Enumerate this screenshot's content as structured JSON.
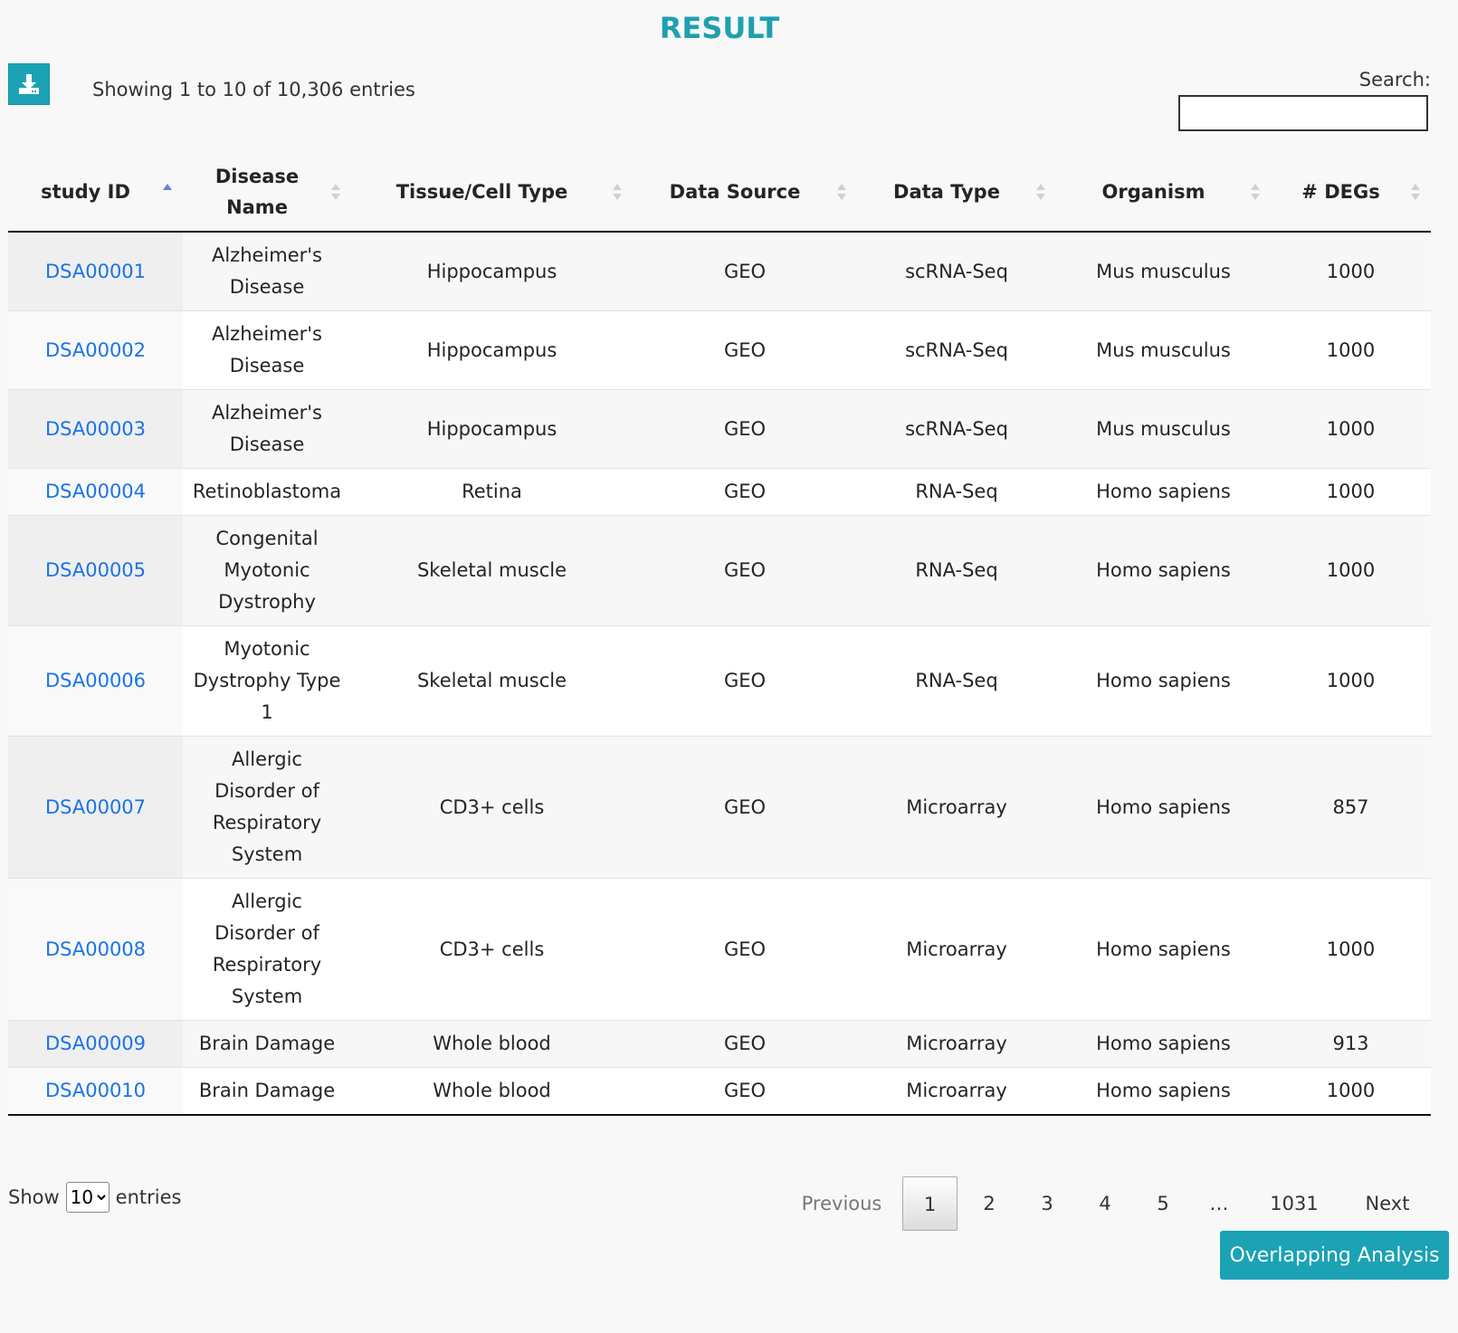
{
  "page": {
    "title": "RESULT"
  },
  "toolbar": {
    "download_icon": "download-icon",
    "info": "Showing 1 to 10 of 10,306 entries"
  },
  "search": {
    "label": "Search:",
    "value": ""
  },
  "table": {
    "columns": [
      "study ID",
      "Disease Name",
      "Tissue/Cell Type",
      "Data Source",
      "Data Type",
      "Organism",
      "# DEGs"
    ],
    "sorted_column": "study ID",
    "sort_direction": "ascending",
    "rows": [
      [
        "DSA00001",
        "Alzheimer's Disease",
        "Hippocampus",
        "GEO",
        "scRNA-Seq",
        "Mus musculus",
        "1000"
      ],
      [
        "DSA00002",
        "Alzheimer's Disease",
        "Hippocampus",
        "GEO",
        "scRNA-Seq",
        "Mus musculus",
        "1000"
      ],
      [
        "DSA00003",
        "Alzheimer's Disease",
        "Hippocampus",
        "GEO",
        "scRNA-Seq",
        "Mus musculus",
        "1000"
      ],
      [
        "DSA00004",
        "Retinoblastoma",
        "Retina",
        "GEO",
        "RNA-Seq",
        "Homo sapiens",
        "1000"
      ],
      [
        "DSA00005",
        "Congenital Myotonic Dystrophy",
        "Skeletal muscle",
        "GEO",
        "RNA-Seq",
        "Homo sapiens",
        "1000"
      ],
      [
        "DSA00006",
        "Myotonic Dystrophy Type 1",
        "Skeletal muscle",
        "GEO",
        "RNA-Seq",
        "Homo sapiens",
        "1000"
      ],
      [
        "DSA00007",
        "Allergic Disorder of Respiratory System",
        "CD3+ cells",
        "GEO",
        "Microarray",
        "Homo sapiens",
        "857"
      ],
      [
        "DSA00008",
        "Allergic Disorder of Respiratory System",
        "CD3+ cells",
        "GEO",
        "Microarray",
        "Homo sapiens",
        "1000"
      ],
      [
        "DSA00009",
        "Brain Damage",
        "Whole blood",
        "GEO",
        "Microarray",
        "Homo sapiens",
        "913"
      ],
      [
        "DSA00010",
        "Brain Damage",
        "Whole blood",
        "GEO",
        "Microarray",
        "Homo sapiens",
        "1000"
      ]
    ]
  },
  "length": {
    "show_label": "Show",
    "selected": "10",
    "entries_label": "entries"
  },
  "pagination": {
    "previous": "Previous",
    "pages": [
      "1",
      "2",
      "3",
      "4",
      "5",
      "…",
      "1031"
    ],
    "current": "1",
    "next": "Next"
  },
  "actions": {
    "overlapping_analysis": "Overlapping Analysis"
  },
  "colors": {
    "accent": "#1ba2b5",
    "title": "#1fa0b0",
    "link": "#1a73e8"
  }
}
